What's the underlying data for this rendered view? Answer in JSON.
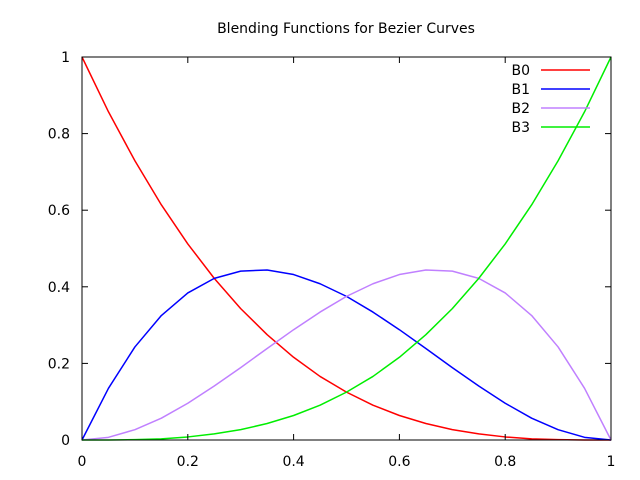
{
  "chart_data": {
    "type": "line",
    "title": "Blending Functions for Bezier Curves",
    "xlabel": "",
    "ylabel": "",
    "xlim": [
      0,
      1
    ],
    "ylim": [
      0,
      1
    ],
    "xticks": [
      0,
      0.2,
      0.4,
      0.6,
      0.8,
      1
    ],
    "xtick_labels": [
      "0",
      "0.2",
      "0.4",
      "0.6",
      "0.8",
      "1"
    ],
    "yticks": [
      0,
      0.2,
      0.4,
      0.6,
      0.8,
      1
    ],
    "ytick_labels": [
      "0",
      "0.2",
      "0.4",
      "0.6",
      "0.8",
      "1"
    ],
    "grid": false,
    "legend_position": "top-right",
    "x": [
      0,
      0.05,
      0.1,
      0.15,
      0.2,
      0.25,
      0.3,
      0.35,
      0.4,
      0.45,
      0.5,
      0.55,
      0.6,
      0.65,
      0.7,
      0.75,
      0.8,
      0.85,
      0.9,
      0.95,
      1
    ],
    "series": [
      {
        "name": "B0",
        "color": "#ff0000",
        "values": [
          1,
          0.857,
          0.729,
          0.614,
          0.512,
          0.422,
          0.343,
          0.275,
          0.216,
          0.166,
          0.125,
          0.091,
          0.064,
          0.043,
          0.027,
          0.016,
          0.008,
          0.003,
          0.001,
          0.0001,
          0
        ]
      },
      {
        "name": "B1",
        "color": "#0000ff",
        "values": [
          0,
          0.135,
          0.243,
          0.325,
          0.384,
          0.422,
          0.441,
          0.444,
          0.432,
          0.408,
          0.375,
          0.334,
          0.288,
          0.239,
          0.189,
          0.141,
          0.096,
          0.057,
          0.027,
          0.007,
          0
        ]
      },
      {
        "name": "B2",
        "color": "#c080ff",
        "values": [
          0,
          0.007,
          0.027,
          0.057,
          0.096,
          0.141,
          0.189,
          0.239,
          0.288,
          0.334,
          0.375,
          0.408,
          0.432,
          0.444,
          0.441,
          0.422,
          0.384,
          0.325,
          0.243,
          0.135,
          0
        ]
      },
      {
        "name": "B3",
        "color": "#00ee00",
        "values": [
          0,
          0.0001,
          0.001,
          0.003,
          0.008,
          0.016,
          0.027,
          0.043,
          0.064,
          0.091,
          0.125,
          0.166,
          0.216,
          0.275,
          0.343,
          0.422,
          0.512,
          0.614,
          0.729,
          0.857,
          1
        ]
      }
    ]
  }
}
